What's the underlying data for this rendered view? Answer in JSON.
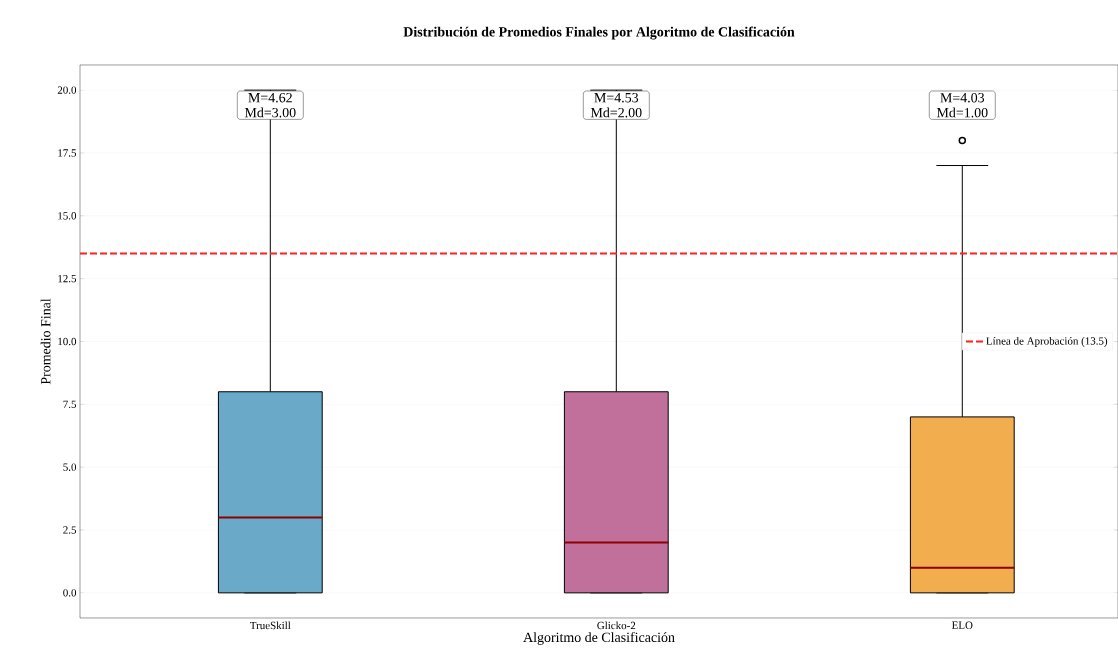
{
  "chart_data": {
    "type": "box",
    "title": "Distribución de Promedios Finales por Algoritmo de Clasificación",
    "xlabel": "Algoritmo de Clasificación",
    "ylabel": "Promedio Final",
    "categories": [
      "TrueSkill",
      "Glicko-2",
      "ELO"
    ],
    "colors": [
      "#6aaac8",
      "#c0709a",
      "#f2ad4e"
    ],
    "boxes": [
      {
        "low": 0,
        "q1": 0,
        "median": 3,
        "q3": 8,
        "high": 20
      },
      {
        "low": 0,
        "q1": 0,
        "median": 2,
        "q3": 8,
        "high": 20
      },
      {
        "low": 0,
        "q1": 0,
        "median": 1,
        "q3": 7,
        "high": 17,
        "outliers": [
          18
        ]
      }
    ],
    "ylim": [
      -1,
      21
    ],
    "yticks": [
      {
        "value": 0,
        "label": "0.0"
      },
      {
        "value": 2.5,
        "label": "2.5"
      },
      {
        "value": 5,
        "label": "5.0"
      },
      {
        "value": 7.5,
        "label": "7.5"
      },
      {
        "value": 10,
        "label": "10.0"
      },
      {
        "value": 12.5,
        "label": "12.5"
      },
      {
        "value": 15,
        "label": "15.0"
      },
      {
        "value": 17.5,
        "label": "17.5"
      },
      {
        "value": 20,
        "label": "20.0"
      }
    ],
    "ref_lines": [
      {
        "axis": "y",
        "value": 13.5,
        "label": "Línea de Aprobación (13.5)",
        "color": "#ff2020",
        "line_style": "dashed"
      }
    ],
    "annotations": [
      "M=4.62 Md=3.00",
      "M=4.53 Md=2.00",
      "M=4.03 Md=1.00"
    ],
    "grid": "y",
    "legend": "right"
  }
}
